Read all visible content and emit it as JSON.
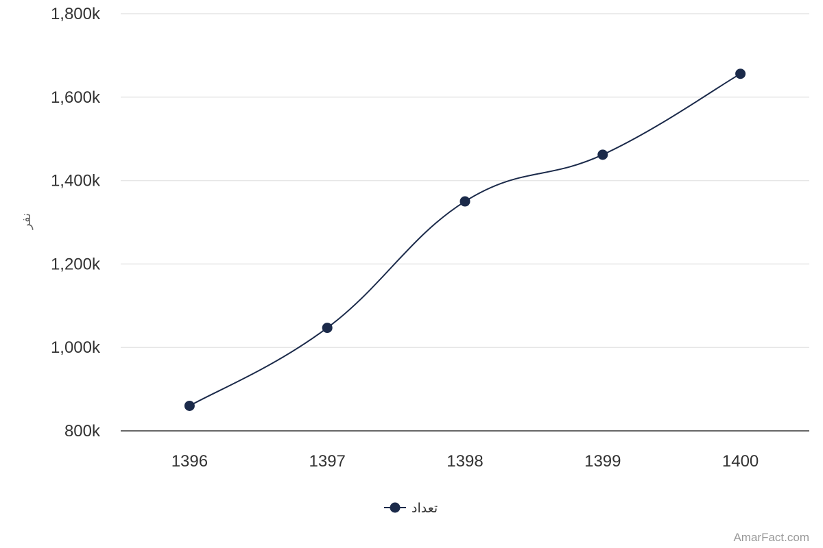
{
  "chart_data": {
    "type": "line",
    "x": [
      "1396",
      "1397",
      "1398",
      "1399",
      "1400"
    ],
    "series": [
      {
        "name": "تعداد",
        "values": [
          860000,
          1047000,
          1350000,
          1462000,
          1656000
        ]
      }
    ],
    "ylim": [
      800000,
      1800000
    ],
    "yticks": [
      800000,
      1000000,
      1200000,
      1400000,
      1600000,
      1800000
    ],
    "ytick_labels": [
      "800k",
      "1,000k",
      "1,200k",
      "1,400k",
      "1,600k",
      "1,800k"
    ],
    "ylabel": "نفر",
    "xlabel": "",
    "grid": true,
    "legend": "bottom-center",
    "colors": {
      "series": "#1b2a4a",
      "grid": "#e6e6e6",
      "axis": "#333333"
    }
  },
  "credit": "AmarFact.com"
}
